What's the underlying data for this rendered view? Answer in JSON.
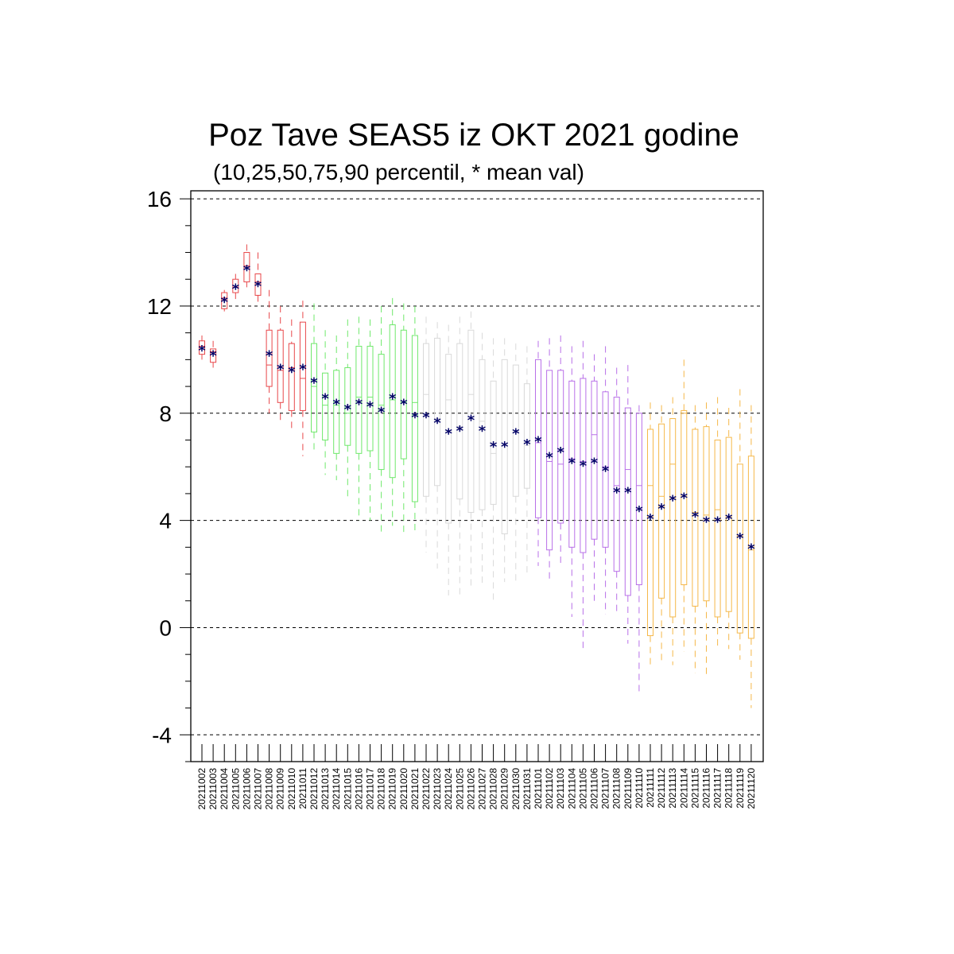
{
  "chart_data": {
    "type": "boxplot",
    "title": "Poz Tave SEAS5 iz OKT 2021 godine",
    "subtitle": "(10,25,50,75,90 percentil, * mean val)",
    "mean_marker": "*",
    "ylim": [
      -5,
      16.3
    ],
    "yticks": [
      -4,
      0,
      4,
      8,
      12,
      16
    ],
    "ytick_labels": [
      "-4",
      "0",
      "4",
      "8",
      "12",
      "16"
    ],
    "grid": "horizontal dashed at major ticks",
    "colors": {
      "red": "#e8474a",
      "green": "#6fe86b",
      "grey": "#d9d9d9",
      "purple": "#b870e8",
      "orange": "#f5b84a",
      "mean": "#000066",
      "axis": "#000000",
      "grid": "#000000"
    },
    "categories": [
      "20211002",
      "20211003",
      "20211004",
      "20211005",
      "20211006",
      "20211007",
      "20211008",
      "20211009",
      "20211010",
      "20211011",
      "20211012",
      "20211013",
      "20211014",
      "20211015",
      "20211016",
      "20211017",
      "20211018",
      "20211019",
      "20211020",
      "20211021",
      "20211022",
      "20211023",
      "20211024",
      "20211025",
      "20211026",
      "20211027",
      "20211028",
      "20211029",
      "20211030",
      "20211031",
      "20211101",
      "20211102",
      "20211103",
      "20211104",
      "20211105",
      "20211106",
      "20211107",
      "20211108",
      "20211109",
      "20211110",
      "20211111",
      "20211112",
      "20211113",
      "20211114",
      "20211115",
      "20211116",
      "20211117",
      "20211118",
      "20211119",
      "20211120"
    ],
    "boxes": [
      {
        "p10": 10.0,
        "p25": 10.2,
        "p50": 10.5,
        "p75": 10.7,
        "p90": 10.9,
        "mean": 10.4,
        "color": "red"
      },
      {
        "p10": 9.7,
        "p25": 9.9,
        "p50": 10.3,
        "p75": 10.4,
        "p90": 10.7,
        "mean": 10.2,
        "color": "red"
      },
      {
        "p10": 11.8,
        "p25": 11.9,
        "p50": 12.3,
        "p75": 12.5,
        "p90": 12.6,
        "mean": 12.2,
        "color": "red"
      },
      {
        "p10": 12.2,
        "p25": 12.5,
        "p50": 12.7,
        "p75": 13.0,
        "p90": 13.2,
        "mean": 12.7,
        "color": "red"
      },
      {
        "p10": 12.7,
        "p25": 12.9,
        "p50": 13.5,
        "p75": 14.0,
        "p90": 14.3,
        "mean": 13.4,
        "color": "red"
      },
      {
        "p10": 12.0,
        "p25": 12.4,
        "p50": 12.9,
        "p75": 13.2,
        "p90": 14.0,
        "mean": 12.8,
        "color": "red"
      },
      {
        "p10": 8.0,
        "p25": 9.0,
        "p50": 9.8,
        "p75": 11.1,
        "p90": 12.6,
        "mean": 10.2,
        "color": "red"
      },
      {
        "p10": 7.7,
        "p25": 8.4,
        "p50": 9.6,
        "p75": 11.1,
        "p90": 12.0,
        "mean": 9.7,
        "color": "red"
      },
      {
        "p10": 7.4,
        "p25": 8.1,
        "p50": 9.7,
        "p75": 10.6,
        "p90": 11.5,
        "mean": 9.6,
        "color": "red"
      },
      {
        "p10": 6.4,
        "p25": 8.1,
        "p50": 9.3,
        "p75": 11.4,
        "p90": 12.2,
        "mean": 9.7,
        "color": "red"
      },
      {
        "p10": 6.6,
        "p25": 7.3,
        "p50": 9.0,
        "p75": 10.6,
        "p90": 12.1,
        "mean": 9.2,
        "color": "green"
      },
      {
        "p10": 5.7,
        "p25": 7.0,
        "p50": 8.3,
        "p75": 9.5,
        "p90": 11.1,
        "mean": 8.6,
        "color": "green"
      },
      {
        "p10": 5.5,
        "p25": 6.5,
        "p50": 8.3,
        "p75": 9.6,
        "p90": 10.9,
        "mean": 8.4,
        "color": "green"
      },
      {
        "p10": 4.8,
        "p25": 6.8,
        "p50": 8.0,
        "p75": 9.7,
        "p90": 11.5,
        "mean": 8.2,
        "color": "green"
      },
      {
        "p10": 4.0,
        "p25": 6.5,
        "p50": 8.6,
        "p75": 10.5,
        "p90": 11.6,
        "mean": 8.4,
        "color": "green"
      },
      {
        "p10": 4.0,
        "p25": 6.6,
        "p50": 8.6,
        "p75": 10.5,
        "p90": 11.5,
        "mean": 8.3,
        "color": "green"
      },
      {
        "p10": 3.5,
        "p25": 5.9,
        "p50": 8.3,
        "p75": 10.2,
        "p90": 12.0,
        "mean": 8.1,
        "color": "green"
      },
      {
        "p10": 3.8,
        "p25": 5.6,
        "p50": 8.5,
        "p75": 11.3,
        "p90": 12.3,
        "mean": 8.6,
        "color": "green"
      },
      {
        "p10": 3.5,
        "p25": 6.3,
        "p50": 8.4,
        "p75": 11.1,
        "p90": 12.1,
        "mean": 8.4,
        "color": "green"
      },
      {
        "p10": 3.5,
        "p25": 4.7,
        "p50": 8.4,
        "p75": 10.9,
        "p90": 12.0,
        "mean": 7.9,
        "color": "green"
      },
      {
        "p10": 2.8,
        "p25": 4.9,
        "p50": 8.7,
        "p75": 10.6,
        "p90": 11.6,
        "mean": 7.9,
        "color": "grey"
      },
      {
        "p10": 2.2,
        "p25": 5.3,
        "p50": 7.8,
        "p75": 10.8,
        "p90": 11.4,
        "mean": 7.7,
        "color": "grey"
      },
      {
        "p10": 1.2,
        "p25": 3.9,
        "p50": 8.5,
        "p75": 10.2,
        "p90": 11.3,
        "mean": 7.3,
        "color": "grey"
      },
      {
        "p10": 1.1,
        "p25": 4.8,
        "p50": 7.5,
        "p75": 10.6,
        "p90": 11.6,
        "mean": 7.4,
        "color": "grey"
      },
      {
        "p10": 1.5,
        "p25": 4.3,
        "p50": 8.7,
        "p75": 11.1,
        "p90": 11.8,
        "mean": 7.8,
        "color": "grey"
      },
      {
        "p10": 1.5,
        "p25": 4.4,
        "p50": 7.7,
        "p75": 10.0,
        "p90": 11.0,
        "mean": 7.4,
        "color": "grey"
      },
      {
        "p10": 1.0,
        "p25": 4.6,
        "p50": 6.5,
        "p75": 9.2,
        "p90": 10.8,
        "mean": 6.8,
        "color": "grey"
      },
      {
        "p10": 1.7,
        "p25": 3.5,
        "p50": 6.8,
        "p75": 10.0,
        "p90": 10.8,
        "mean": 6.8,
        "color": "grey"
      },
      {
        "p10": 1.7,
        "p25": 4.9,
        "p50": 7.3,
        "p75": 9.8,
        "p90": 10.6,
        "mean": 7.3,
        "color": "grey"
      },
      {
        "p10": 2.0,
        "p25": 5.2,
        "p50": 6.8,
        "p75": 9.1,
        "p90": 10.5,
        "mean": 6.9,
        "color": "grey"
      },
      {
        "p10": 2.3,
        "p25": 4.1,
        "p50": 6.9,
        "p75": 10.0,
        "p90": 10.7,
        "mean": 7.0,
        "color": "purple"
      },
      {
        "p10": 1.7,
        "p25": 2.9,
        "p50": 6.2,
        "p75": 9.6,
        "p90": 10.8,
        "mean": 6.4,
        "color": "purple"
      },
      {
        "p10": 2.4,
        "p25": 3.9,
        "p50": 6.1,
        "p75": 9.6,
        "p90": 10.9,
        "mean": 6.6,
        "color": "purple"
      },
      {
        "p10": 0.4,
        "p25": 3.0,
        "p50": 6.3,
        "p75": 9.2,
        "p90": 10.5,
        "mean": 6.2,
        "color": "purple"
      },
      {
        "p10": -0.8,
        "p25": 2.8,
        "p50": 6.2,
        "p75": 9.3,
        "p90": 10.7,
        "mean": 6.1,
        "color": "purple"
      },
      {
        "p10": 1.0,
        "p25": 3.3,
        "p50": 7.2,
        "p75": 9.2,
        "p90": 10.2,
        "mean": 6.2,
        "color": "purple"
      },
      {
        "p10": 0.5,
        "p25": 3.0,
        "p50": 6.0,
        "p75": 8.8,
        "p90": 10.5,
        "mean": 5.9,
        "color": "purple"
      },
      {
        "p10": 0.6,
        "p25": 2.1,
        "p50": 5.3,
        "p75": 8.6,
        "p90": 9.7,
        "mean": 5.1,
        "color": "purple"
      },
      {
        "p10": -0.6,
        "p25": 1.2,
        "p50": 5.9,
        "p75": 8.2,
        "p90": 9.8,
        "mean": 5.1,
        "color": "purple"
      },
      {
        "p10": -2.4,
        "p25": 1.6,
        "p50": 5.3,
        "p75": 8.0,
        "p90": 8.3,
        "mean": 4.4,
        "color": "purple"
      },
      {
        "p10": -1.5,
        "p25": -0.3,
        "p50": 5.3,
        "p75": 7.4,
        "p90": 8.4,
        "mean": 4.1,
        "color": "orange"
      },
      {
        "p10": -1.3,
        "p25": 1.1,
        "p50": 4.9,
        "p75": 7.6,
        "p90": 8.3,
        "mean": 4.5,
        "color": "orange"
      },
      {
        "p10": -1.4,
        "p25": 0.4,
        "p50": 6.1,
        "p75": 7.8,
        "p90": 8.6,
        "mean": 4.8,
        "color": "orange"
      },
      {
        "p10": -0.9,
        "p25": 1.6,
        "p50": 8.0,
        "p75": 8.1,
        "p90": 10.0,
        "mean": 4.9,
        "color": "orange"
      },
      {
        "p10": -1.7,
        "p25": 0.8,
        "p50": 4.3,
        "p75": 7.4,
        "p90": 8.3,
        "mean": 4.2,
        "color": "orange"
      },
      {
        "p10": -1.9,
        "p25": 1.0,
        "p50": 4.2,
        "p75": 7.5,
        "p90": 8.4,
        "mean": 4.0,
        "color": "orange"
      },
      {
        "p10": -0.8,
        "p25": 0.4,
        "p50": 4.4,
        "p75": 7.0,
        "p90": 8.6,
        "mean": 4.0,
        "color": "orange"
      },
      {
        "p10": -0.8,
        "p25": 0.6,
        "p50": 4.1,
        "p75": 7.1,
        "p90": 8.2,
        "mean": 4.1,
        "color": "orange"
      },
      {
        "p10": -1.2,
        "p25": -0.2,
        "p50": 3.4,
        "p75": 6.1,
        "p90": 8.9,
        "mean": 3.4,
        "color": "orange"
      },
      {
        "p10": -3.0,
        "p25": -0.4,
        "p50": 2.9,
        "p75": 6.4,
        "p90": 8.3,
        "mean": 3.0,
        "color": "orange"
      }
    ]
  }
}
